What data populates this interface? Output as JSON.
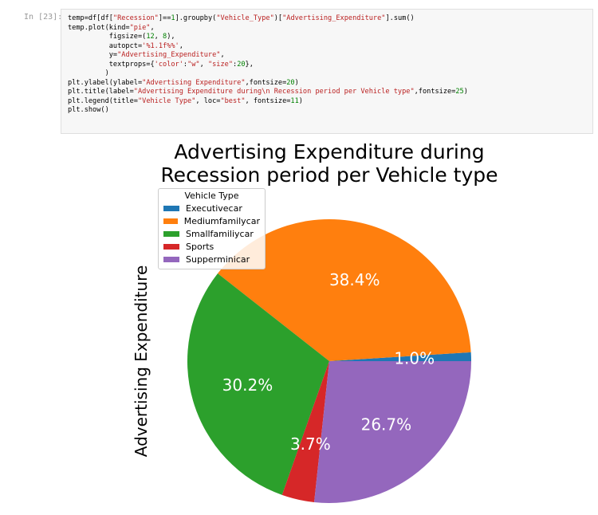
{
  "cell": {
    "prompt": "In [23]:",
    "code_lines": [
      [
        {
          "t": "temp=df[df["
        },
        {
          "t": "\"Recession\"",
          "c": "s"
        },
        {
          "t": "]=="
        },
        {
          "t": "1",
          "c": "n"
        },
        {
          "t": "].groupby("
        },
        {
          "t": "\"Vehicle_Type\"",
          "c": "s"
        },
        {
          "t": ")["
        },
        {
          "t": "\"Advertising_Expenditure\"",
          "c": "s"
        },
        {
          "t": "].sum()"
        }
      ],
      [
        {
          "t": "temp.plot(kind="
        },
        {
          "t": "\"pie\"",
          "c": "s"
        },
        {
          "t": ","
        }
      ],
      [
        {
          "t": "          figsize=("
        },
        {
          "t": "12",
          "c": "n"
        },
        {
          "t": ", "
        },
        {
          "t": "8",
          "c": "n"
        },
        {
          "t": "),"
        }
      ],
      [
        {
          "t": "          autopct="
        },
        {
          "t": "'%1.1f%%'",
          "c": "s"
        },
        {
          "t": ","
        }
      ],
      [
        {
          "t": "          y="
        },
        {
          "t": "\"Advertising_Expenditure\"",
          "c": "s"
        },
        {
          "t": ","
        }
      ],
      [
        {
          "t": "          textprops={"
        },
        {
          "t": "'color'",
          "c": "s"
        },
        {
          "t": ":"
        },
        {
          "t": "\"w\"",
          "c": "s"
        },
        {
          "t": ", "
        },
        {
          "t": "\"size\"",
          "c": "s"
        },
        {
          "t": ":"
        },
        {
          "t": "20",
          "c": "n"
        },
        {
          "t": "},"
        }
      ],
      [
        {
          "t": "         )"
        }
      ],
      [
        {
          "t": "plt.ylabel(ylabel="
        },
        {
          "t": "\"Advertising Expenditure\"",
          "c": "s"
        },
        {
          "t": ",fontsize="
        },
        {
          "t": "20",
          "c": "n"
        },
        {
          "t": ")"
        }
      ],
      [
        {
          "t": "plt.title(label="
        },
        {
          "t": "\"Advertising Expenditure during\\n Recession period per Vehicle type\"",
          "c": "s"
        },
        {
          "t": ",fontsize="
        },
        {
          "t": "25",
          "c": "n"
        },
        {
          "t": ")"
        }
      ],
      [
        {
          "t": "plt.legend(title="
        },
        {
          "t": "\"Vehicle Type\"",
          "c": "s"
        },
        {
          "t": ", loc="
        },
        {
          "t": "\"best\"",
          "c": "s"
        },
        {
          "t": ", fontsize="
        },
        {
          "t": "11",
          "c": "n"
        },
        {
          "t": ")"
        }
      ],
      [
        {
          "t": "plt.show()"
        }
      ]
    ]
  },
  "chart_data": {
    "type": "pie",
    "title": [
      "Advertising Expenditure during",
      "Recession period per Vehicle type"
    ],
    "ylabel": "Advertising Expenditure",
    "legend": {
      "title": "Vehicle Type",
      "placement": "top-left"
    },
    "categories": [
      "Executivecar",
      "Mediumfamilycar",
      "Smallfamiliycar",
      "Sports",
      "Supperminicar"
    ],
    "values": [
      1.0,
      38.4,
      30.2,
      3.7,
      26.7
    ],
    "labels": [
      "1.0%",
      "38.4%",
      "30.2%",
      "3.7%",
      "26.7%"
    ],
    "colors": [
      "#1f77b4",
      "#ff7f0e",
      "#2ca02c",
      "#d62728",
      "#9467bd"
    ],
    "label_color": "#ffffff"
  }
}
